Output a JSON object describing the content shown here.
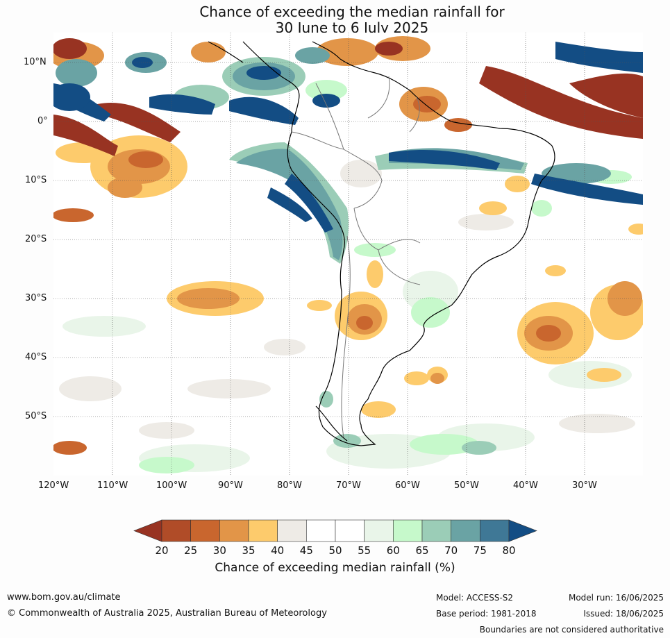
{
  "title": {
    "line1": "Chance of exceeding the median rainfall for",
    "line2": "30 June to 6 July 2025"
  },
  "map": {
    "region": "South America",
    "lat_labels": [
      "10°N",
      "0°",
      "10°S",
      "20°S",
      "30°S",
      "40°S",
      "50°S"
    ],
    "lon_labels": [
      "120°W",
      "110°W",
      "100°W",
      "90°W",
      "80°W",
      "70°W",
      "60°W",
      "50°W",
      "40°W",
      "30°W"
    ],
    "lat_range": [
      -60,
      15
    ],
    "lon_range": [
      -120,
      -20
    ]
  },
  "colorbar": {
    "ticks": [
      "20",
      "25",
      "30",
      "35",
      "40",
      "45",
      "50",
      "55",
      "60",
      "65",
      "70",
      "75",
      "80"
    ],
    "colors": [
      "#983322",
      "#b04c28",
      "#c9662e",
      "#e29548",
      "#fdcb6c",
      "#eeebe6",
      "#ffffff",
      "#ffffff",
      "#e9f5e9",
      "#c6f9cb",
      "#9bcdb7",
      "#6aa3a4",
      "#3f7896",
      "#134d84"
    ],
    "label": "Chance of exceeding median rainfall (%)"
  },
  "footer": {
    "website": "www.bom.gov.au/climate",
    "copyright": "© Commonwealth of Australia 2025, Australian Bureau of Meteorology",
    "model": "Model: ACCESS-S2",
    "base_period": "Base period: 1981-2018",
    "model_run": "Model run: 16/06/2025",
    "issued": "Issued: 18/06/2025",
    "disclaimer": "Boundaries are not considered authoritative"
  }
}
